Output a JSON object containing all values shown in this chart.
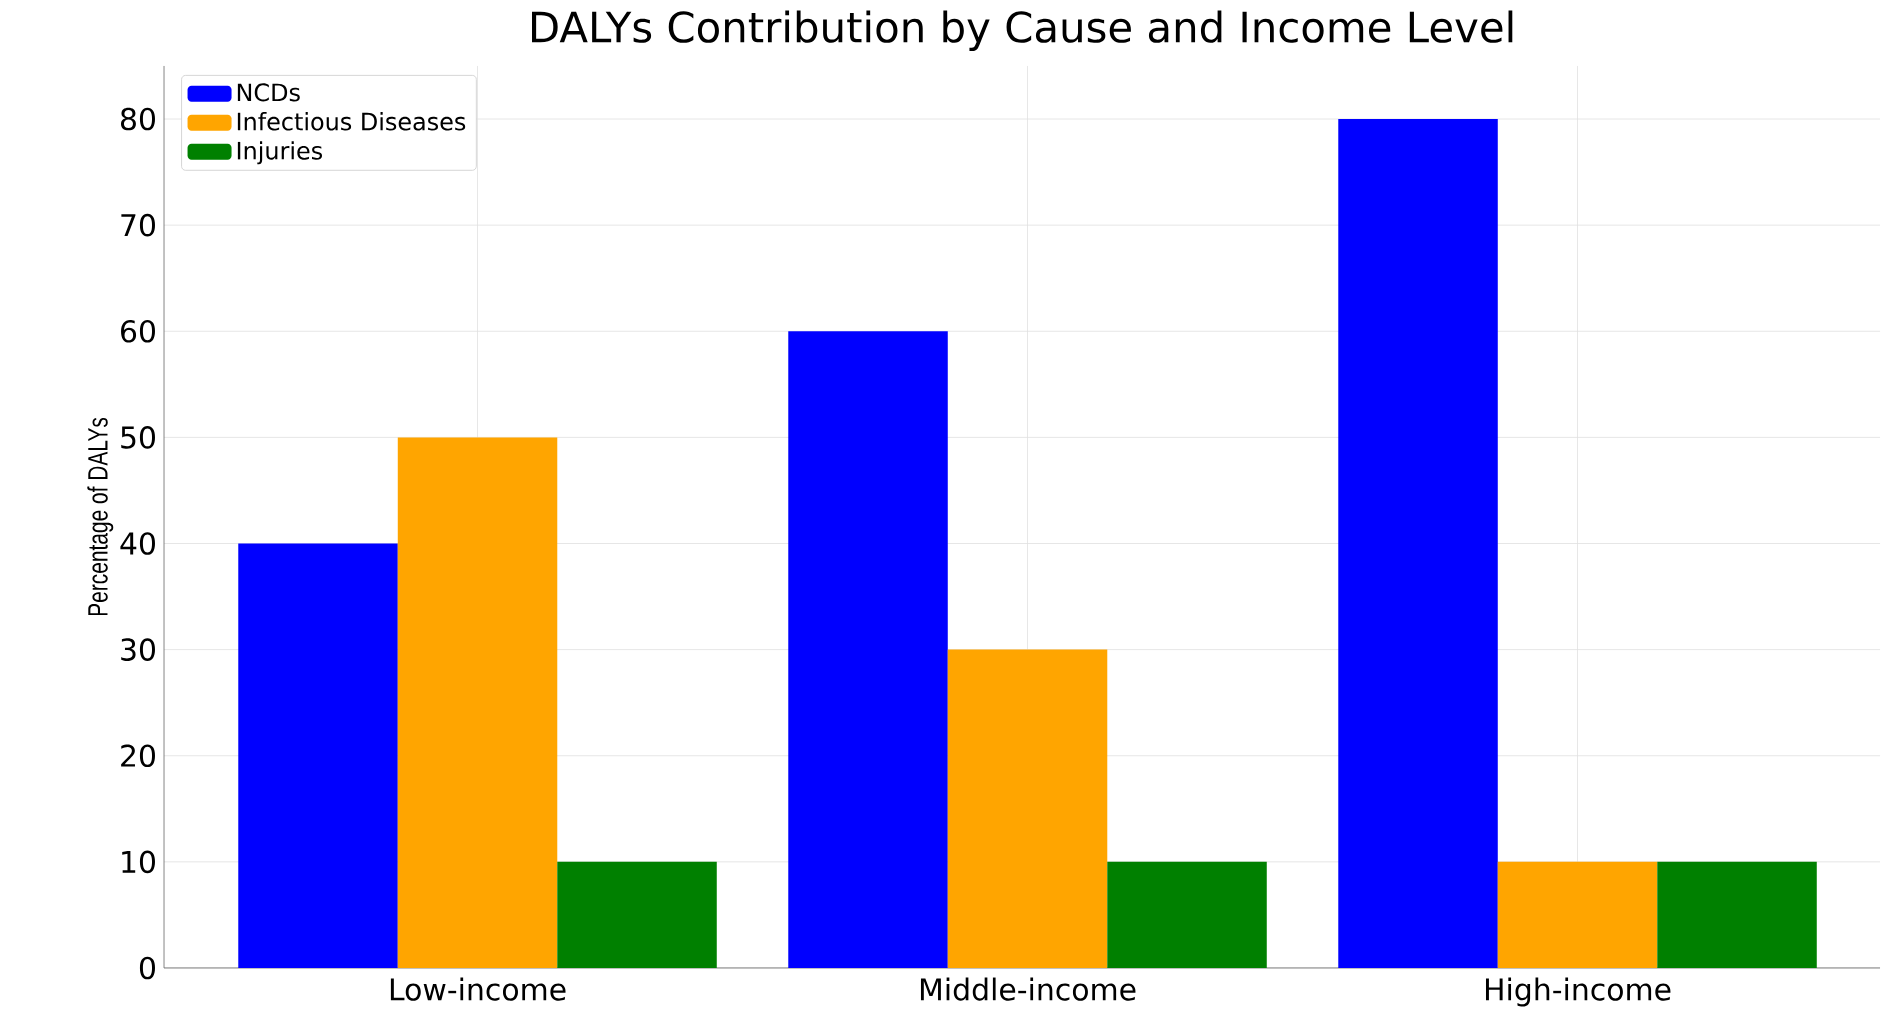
{
  "chart_data": {
    "type": "bar",
    "title": "DALYs Contribution by Cause and Income Level",
    "ylabel": "Percentage of DALYs",
    "categories": [
      "Low-income",
      "Middle-income",
      "High-income"
    ],
    "series": [
      {
        "name": "NCDs",
        "color": "#0000ff",
        "values": [
          40,
          60,
          80
        ]
      },
      {
        "name": "Infectious Diseases",
        "color": "#ffa500",
        "values": [
          50,
          30,
          10
        ]
      },
      {
        "name": "Injuries",
        "color": "#008000",
        "values": [
          10,
          10,
          10
        ]
      }
    ],
    "ylim": [
      0,
      85
    ],
    "yticks": [
      0,
      10,
      20,
      30,
      40,
      50,
      60,
      70,
      80
    ],
    "grid": true,
    "legend": "top left"
  }
}
